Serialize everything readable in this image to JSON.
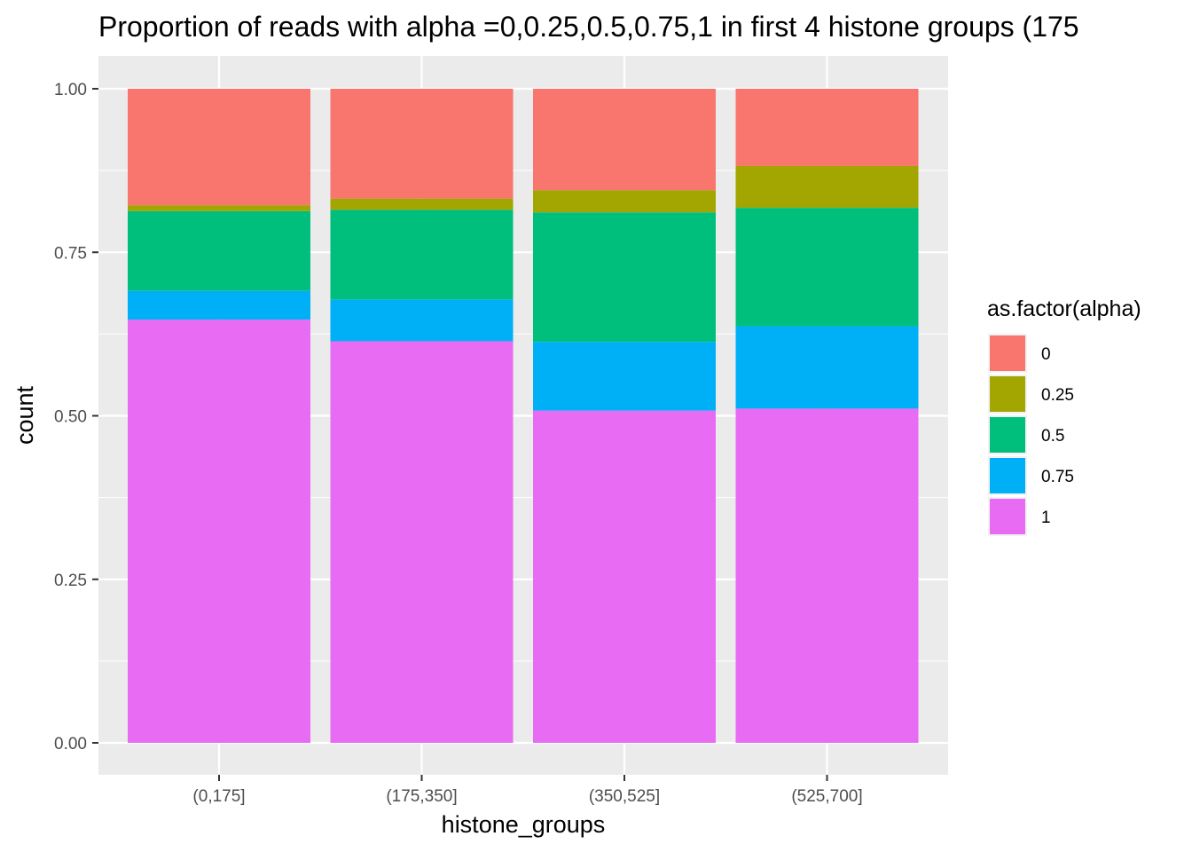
{
  "chart_data": {
    "type": "bar",
    "stacked": true,
    "title": "Proportion of reads with alpha =0,0.25,0.5,0.75,1 in first 4 histone groups (175",
    "xlabel": "histone_groups",
    "ylabel": "count",
    "ylim": [
      0,
      1
    ],
    "yticks": [
      "0.00",
      "0.25",
      "0.50",
      "0.75",
      "1.00"
    ],
    "categories": [
      "(0,175]",
      "(175,350]",
      "(350,525]",
      "(525,700]"
    ],
    "legend": {
      "title": "as.factor(alpha)",
      "position": "right"
    },
    "grid": true,
    "series": [
      {
        "name": "0",
        "color": "#F8766D",
        "values": [
          0.178,
          0.168,
          0.155,
          0.118
        ]
      },
      {
        "name": "0.25",
        "color": "#A3A500",
        "values": [
          0.009,
          0.017,
          0.034,
          0.064
        ]
      },
      {
        "name": "0.5",
        "color": "#00BF7D",
        "values": [
          0.122,
          0.137,
          0.198,
          0.181
        ]
      },
      {
        "name": "0.75",
        "color": "#00B0F6",
        "values": [
          0.044,
          0.064,
          0.105,
          0.126
        ]
      },
      {
        "name": "1",
        "color": "#E76BF3",
        "values": [
          0.647,
          0.614,
          0.508,
          0.511
        ]
      }
    ]
  }
}
